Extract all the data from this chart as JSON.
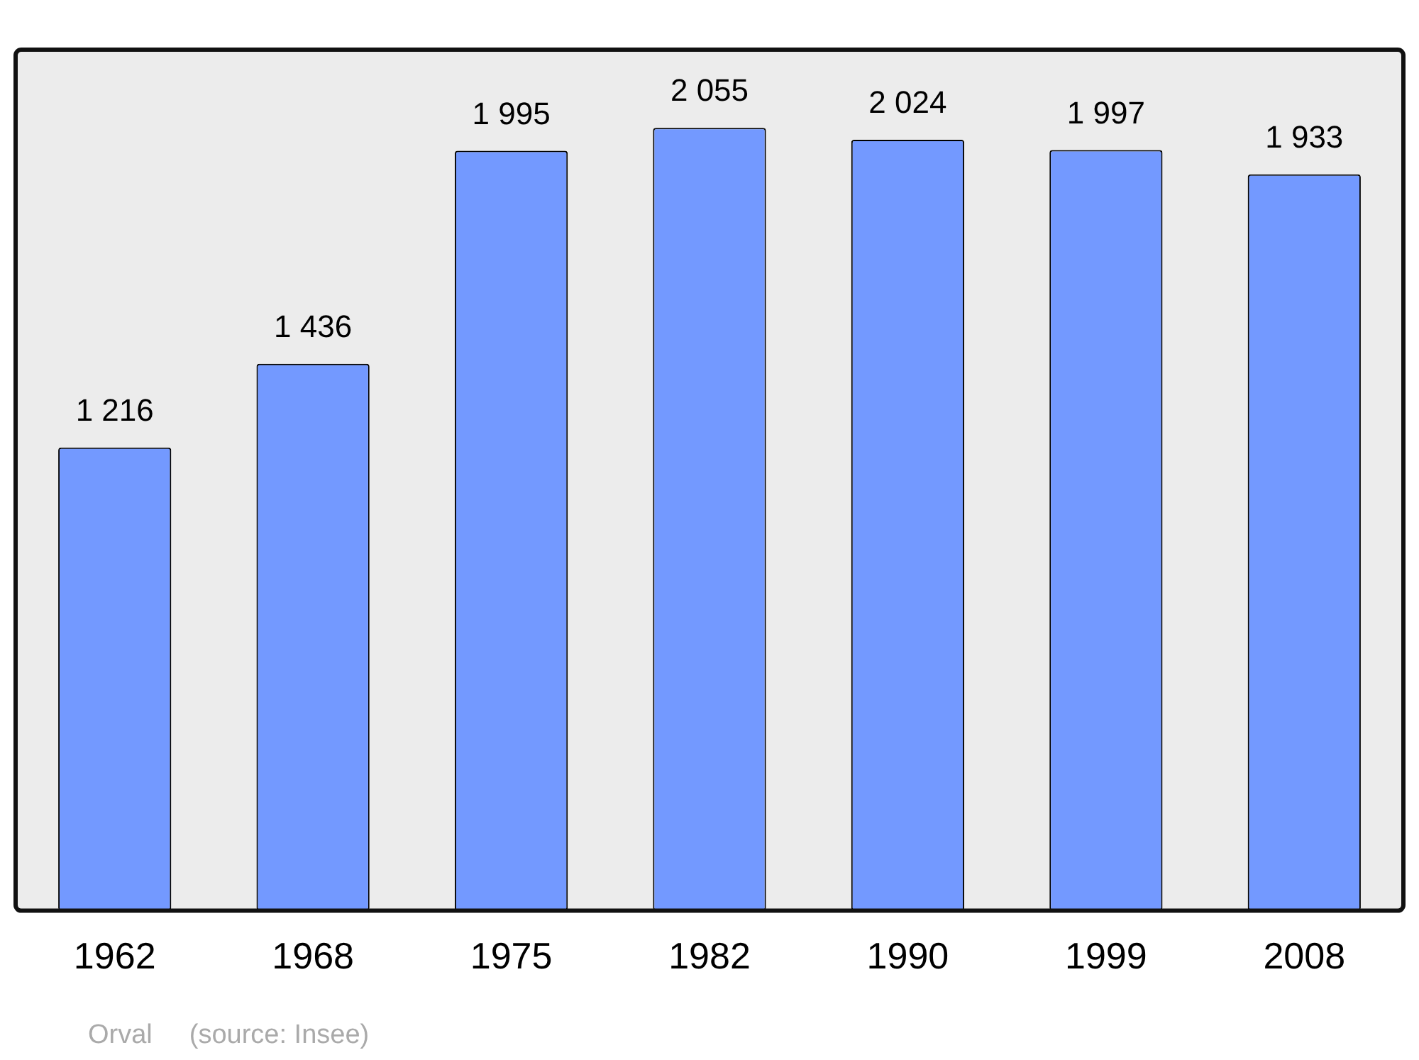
{
  "chart_data": {
    "type": "bar",
    "categories": [
      "1962",
      "1968",
      "1975",
      "1982",
      "1990",
      "1999",
      "2008"
    ],
    "values": [
      1216,
      1436,
      1995,
      2055,
      2024,
      1997,
      1933
    ],
    "value_labels": [
      "1 216",
      "1 436",
      "1 995",
      "2 055",
      "2 024",
      "1 997",
      "1 933"
    ],
    "color": "#7399ff",
    "grid": false,
    "legend": false,
    "annotations": [
      "Orval",
      "(source: Insee)"
    ]
  }
}
